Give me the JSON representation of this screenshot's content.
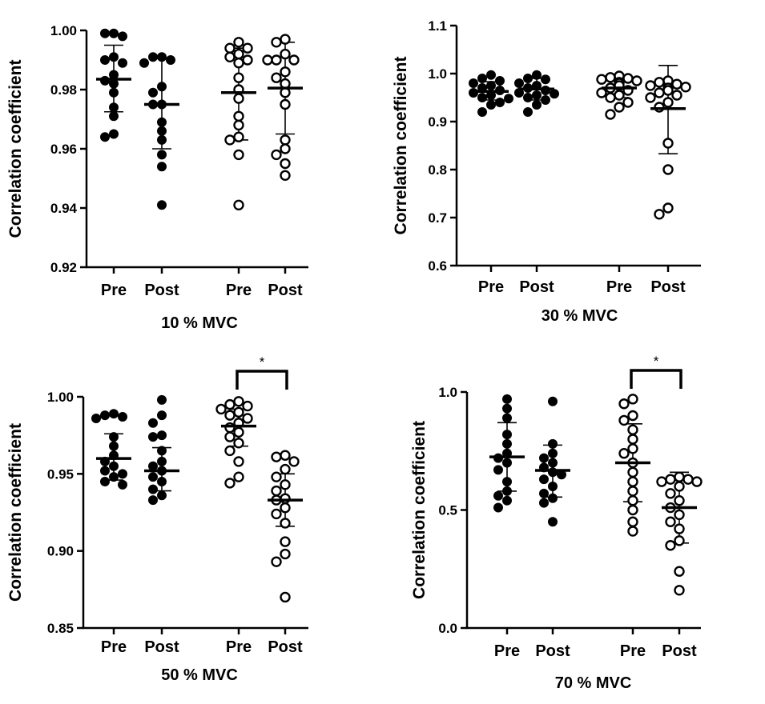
{
  "chart_data": [
    {
      "type": "scatter",
      "xlabel": "10 % MVC",
      "ylabel": "Correlation coefficient",
      "ylim": [
        0.92,
        1.0
      ],
      "yticks": [
        "0.92",
        "0.94",
        "0.96",
        "0.98",
        "1.00"
      ],
      "categories": [
        "Pre",
        "Post",
        "Pre",
        "Post"
      ],
      "significance": [],
      "groups": [
        {
          "category": "Pre",
          "filled": true,
          "mean": 0.9835,
          "sd_low": 0.9725,
          "sd_high": 0.995,
          "values": [
            0.999,
            0.999,
            0.998,
            0.991,
            0.99,
            0.989,
            0.985,
            0.983,
            0.982,
            0.979,
            0.974,
            0.971,
            0.965,
            0.964
          ]
        },
        {
          "category": "Post",
          "filled": true,
          "mean": 0.975,
          "sd_low": 0.96,
          "sd_high": 0.9905,
          "values": [
            0.991,
            0.991,
            0.99,
            0.989,
            0.981,
            0.979,
            0.975,
            0.975,
            0.969,
            0.966,
            0.963,
            0.958,
            0.954,
            0.941
          ]
        },
        {
          "category": "Pre",
          "filled": false,
          "mean": 0.979,
          "sd_low": 0.963,
          "sd_high": 0.994,
          "values": [
            0.996,
            0.994,
            0.994,
            0.992,
            0.991,
            0.99,
            0.989,
            0.984,
            0.98,
            0.977,
            0.971,
            0.968,
            0.964,
            0.963,
            0.958,
            0.941
          ]
        },
        {
          "category": "Post",
          "filled": false,
          "mean": 0.9805,
          "sd_low": 0.965,
          "sd_high": 0.996,
          "values": [
            0.997,
            0.996,
            0.992,
            0.99,
            0.99,
            0.99,
            0.986,
            0.984,
            0.982,
            0.979,
            0.975,
            0.963,
            0.96,
            0.958,
            0.955,
            0.951
          ]
        }
      ]
    },
    {
      "type": "scatter",
      "xlabel": "30 % MVC",
      "ylabel": "Correlation coefficient",
      "ylim": [
        0.6,
        1.1
      ],
      "yticks": [
        "0.6",
        "0.7",
        "0.8",
        "0.9",
        "1.0",
        "1.1"
      ],
      "categories": [
        "Pre",
        "Post",
        "Pre",
        "Post"
      ],
      "significance": [],
      "groups": [
        {
          "category": "Pre",
          "filled": true,
          "mean": 0.963,
          "sd_low": 0.945,
          "sd_high": 0.983,
          "values": [
            0.997,
            0.99,
            0.985,
            0.98,
            0.975,
            0.97,
            0.965,
            0.96,
            0.955,
            0.95,
            0.948,
            0.94,
            0.935,
            0.92
          ]
        },
        {
          "category": "Post",
          "filled": true,
          "mean": 0.968,
          "sd_low": 0.945,
          "sd_high": 0.99,
          "values": [
            0.997,
            0.99,
            0.988,
            0.98,
            0.975,
            0.97,
            0.965,
            0.96,
            0.958,
            0.955,
            0.95,
            0.945,
            0.935,
            0.92
          ]
        },
        {
          "category": "Pre",
          "filled": false,
          "mean": 0.97,
          "sd_low": 0.95,
          "sd_high": 0.99,
          "values": [
            0.995,
            0.992,
            0.99,
            0.988,
            0.985,
            0.982,
            0.98,
            0.975,
            0.97,
            0.965,
            0.96,
            0.955,
            0.95,
            0.94,
            0.93,
            0.915
          ]
        },
        {
          "category": "Post",
          "filled": false,
          "mean": 0.927,
          "sd_low": 0.833,
          "sd_high": 1.017,
          "values": [
            0.985,
            0.982,
            0.978,
            0.975,
            0.972,
            0.97,
            0.965,
            0.96,
            0.955,
            0.95,
            0.94,
            0.93,
            0.855,
            0.8,
            0.72,
            0.707
          ]
        }
      ]
    },
    {
      "type": "scatter",
      "xlabel": "50 % MVC",
      "ylabel": "Correlation coefficient",
      "ylim": [
        0.85,
        1.0
      ],
      "yticks": [
        "0.85",
        "0.90",
        "0.95",
        "1.00"
      ],
      "categories": [
        "Pre",
        "Post",
        "Pre",
        "Post"
      ],
      "significance": [
        {
          "from": 2,
          "to": 3,
          "label": "*"
        }
      ],
      "groups": [
        {
          "category": "Pre",
          "filled": true,
          "mean": 0.96,
          "sd_low": 0.946,
          "sd_high": 0.976,
          "values": [
            0.989,
            0.988,
            0.987,
            0.986,
            0.974,
            0.968,
            0.962,
            0.958,
            0.955,
            0.952,
            0.95,
            0.948,
            0.945,
            0.943
          ]
        },
        {
          "category": "Post",
          "filled": true,
          "mean": 0.952,
          "sd_low": 0.939,
          "sd_high": 0.967,
          "values": [
            0.998,
            0.988,
            0.983,
            0.975,
            0.974,
            0.965,
            0.958,
            0.955,
            0.952,
            0.948,
            0.945,
            0.94,
            0.936,
            0.933
          ]
        },
        {
          "category": "Pre",
          "filled": false,
          "mean": 0.981,
          "sd_low": 0.968,
          "sd_high": 0.992,
          "values": [
            0.997,
            0.995,
            0.994,
            0.992,
            0.99,
            0.988,
            0.986,
            0.983,
            0.98,
            0.977,
            0.974,
            0.97,
            0.965,
            0.958,
            0.948,
            0.944
          ]
        },
        {
          "category": "Post",
          "filled": false,
          "mean": 0.933,
          "sd_low": 0.916,
          "sd_high": 0.95,
          "values": [
            0.962,
            0.961,
            0.958,
            0.953,
            0.948,
            0.943,
            0.939,
            0.934,
            0.933,
            0.928,
            0.924,
            0.918,
            0.906,
            0.898,
            0.893,
            0.87
          ]
        }
      ]
    },
    {
      "type": "scatter",
      "xlabel": "70 % MVC",
      "ylabel": "Correlation coefficient",
      "ylim": [
        0.0,
        1.0
      ],
      "yticks": [
        "0.0",
        "0.5",
        "1.0"
      ],
      "categories": [
        "Pre",
        "Post",
        "Pre",
        "Post"
      ],
      "significance": [
        {
          "from": 2,
          "to": 3,
          "label": "*"
        }
      ],
      "groups": [
        {
          "category": "Pre",
          "filled": true,
          "mean": 0.725,
          "sd_low": 0.58,
          "sd_high": 0.87,
          "values": [
            0.97,
            0.93,
            0.89,
            0.82,
            0.78,
            0.74,
            0.72,
            0.7,
            0.67,
            0.62,
            0.58,
            0.56,
            0.54,
            0.51
          ]
        },
        {
          "category": "Post",
          "filled": true,
          "mean": 0.668,
          "sd_low": 0.555,
          "sd_high": 0.775,
          "values": [
            0.96,
            0.78,
            0.74,
            0.72,
            0.7,
            0.68,
            0.66,
            0.65,
            0.63,
            0.6,
            0.57,
            0.55,
            0.53,
            0.45
          ]
        },
        {
          "category": "Pre",
          "filled": false,
          "mean": 0.7,
          "sd_low": 0.535,
          "sd_high": 0.865,
          "values": [
            0.97,
            0.95,
            0.9,
            0.88,
            0.84,
            0.8,
            0.76,
            0.74,
            0.7,
            0.66,
            0.62,
            0.58,
            0.54,
            0.5,
            0.45,
            0.41
          ]
        },
        {
          "category": "Post",
          "filled": false,
          "mean": 0.51,
          "sd_low": 0.36,
          "sd_high": 0.66,
          "values": [
            0.64,
            0.63,
            0.63,
            0.62,
            0.62,
            0.6,
            0.57,
            0.54,
            0.51,
            0.48,
            0.45,
            0.42,
            0.37,
            0.24,
            0.16,
            0.35
          ]
        }
      ]
    }
  ]
}
